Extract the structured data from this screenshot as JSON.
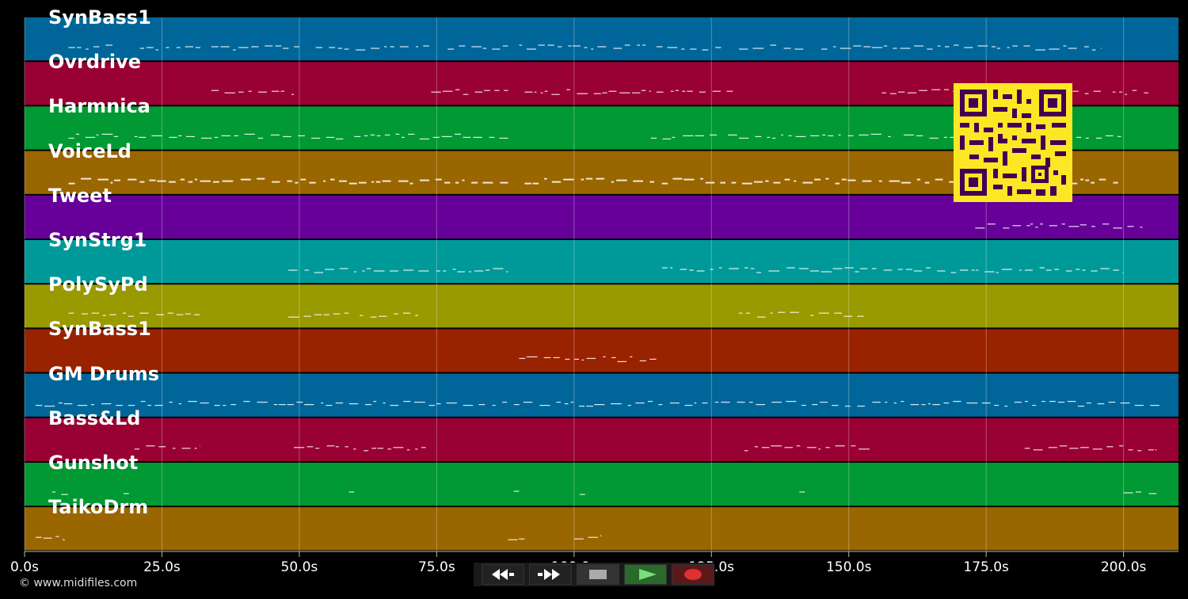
{
  "tracks": [
    {
      "name": "SynBass1",
      "color": "#006699"
    },
    {
      "name": "Ovrdrive",
      "color": "#990033"
    },
    {
      "name": "Harmnica",
      "color": "#009933"
    },
    {
      "name": "VoiceLd",
      "color": "#996600"
    },
    {
      "name": "Tweet",
      "color": "#660099"
    },
    {
      "name": "SynStrg1",
      "color": "#009999"
    },
    {
      "name": "PolySyPd",
      "color": "#999900"
    },
    {
      "name": "SynBass1",
      "color": "#992200"
    },
    {
      "name": "GM Drums",
      "color": "#006699"
    },
    {
      "name": "Bass&Ld",
      "color": "#990033"
    },
    {
      "name": "Gunshot",
      "color": "#009933"
    },
    {
      "name": "TaikoDrm",
      "color": "#996600"
    }
  ],
  "timeline": {
    "max_seconds": 210,
    "ticks": [
      "0.0s",
      "25.0s",
      "50.0s",
      "75.0s",
      "100.0s",
      "125.0s",
      "150.0s",
      "175.0s",
      "200.0s"
    ]
  },
  "transport": {
    "rewind_icon": "rewind-icon",
    "fast_forward_icon": "fast-forward-icon",
    "stop_icon": "stop-icon",
    "play_icon": "play-icon",
    "record_icon": "record-icon"
  },
  "copyright": "© www.midifiles.com",
  "qr_icon": "qr-code-icon"
}
